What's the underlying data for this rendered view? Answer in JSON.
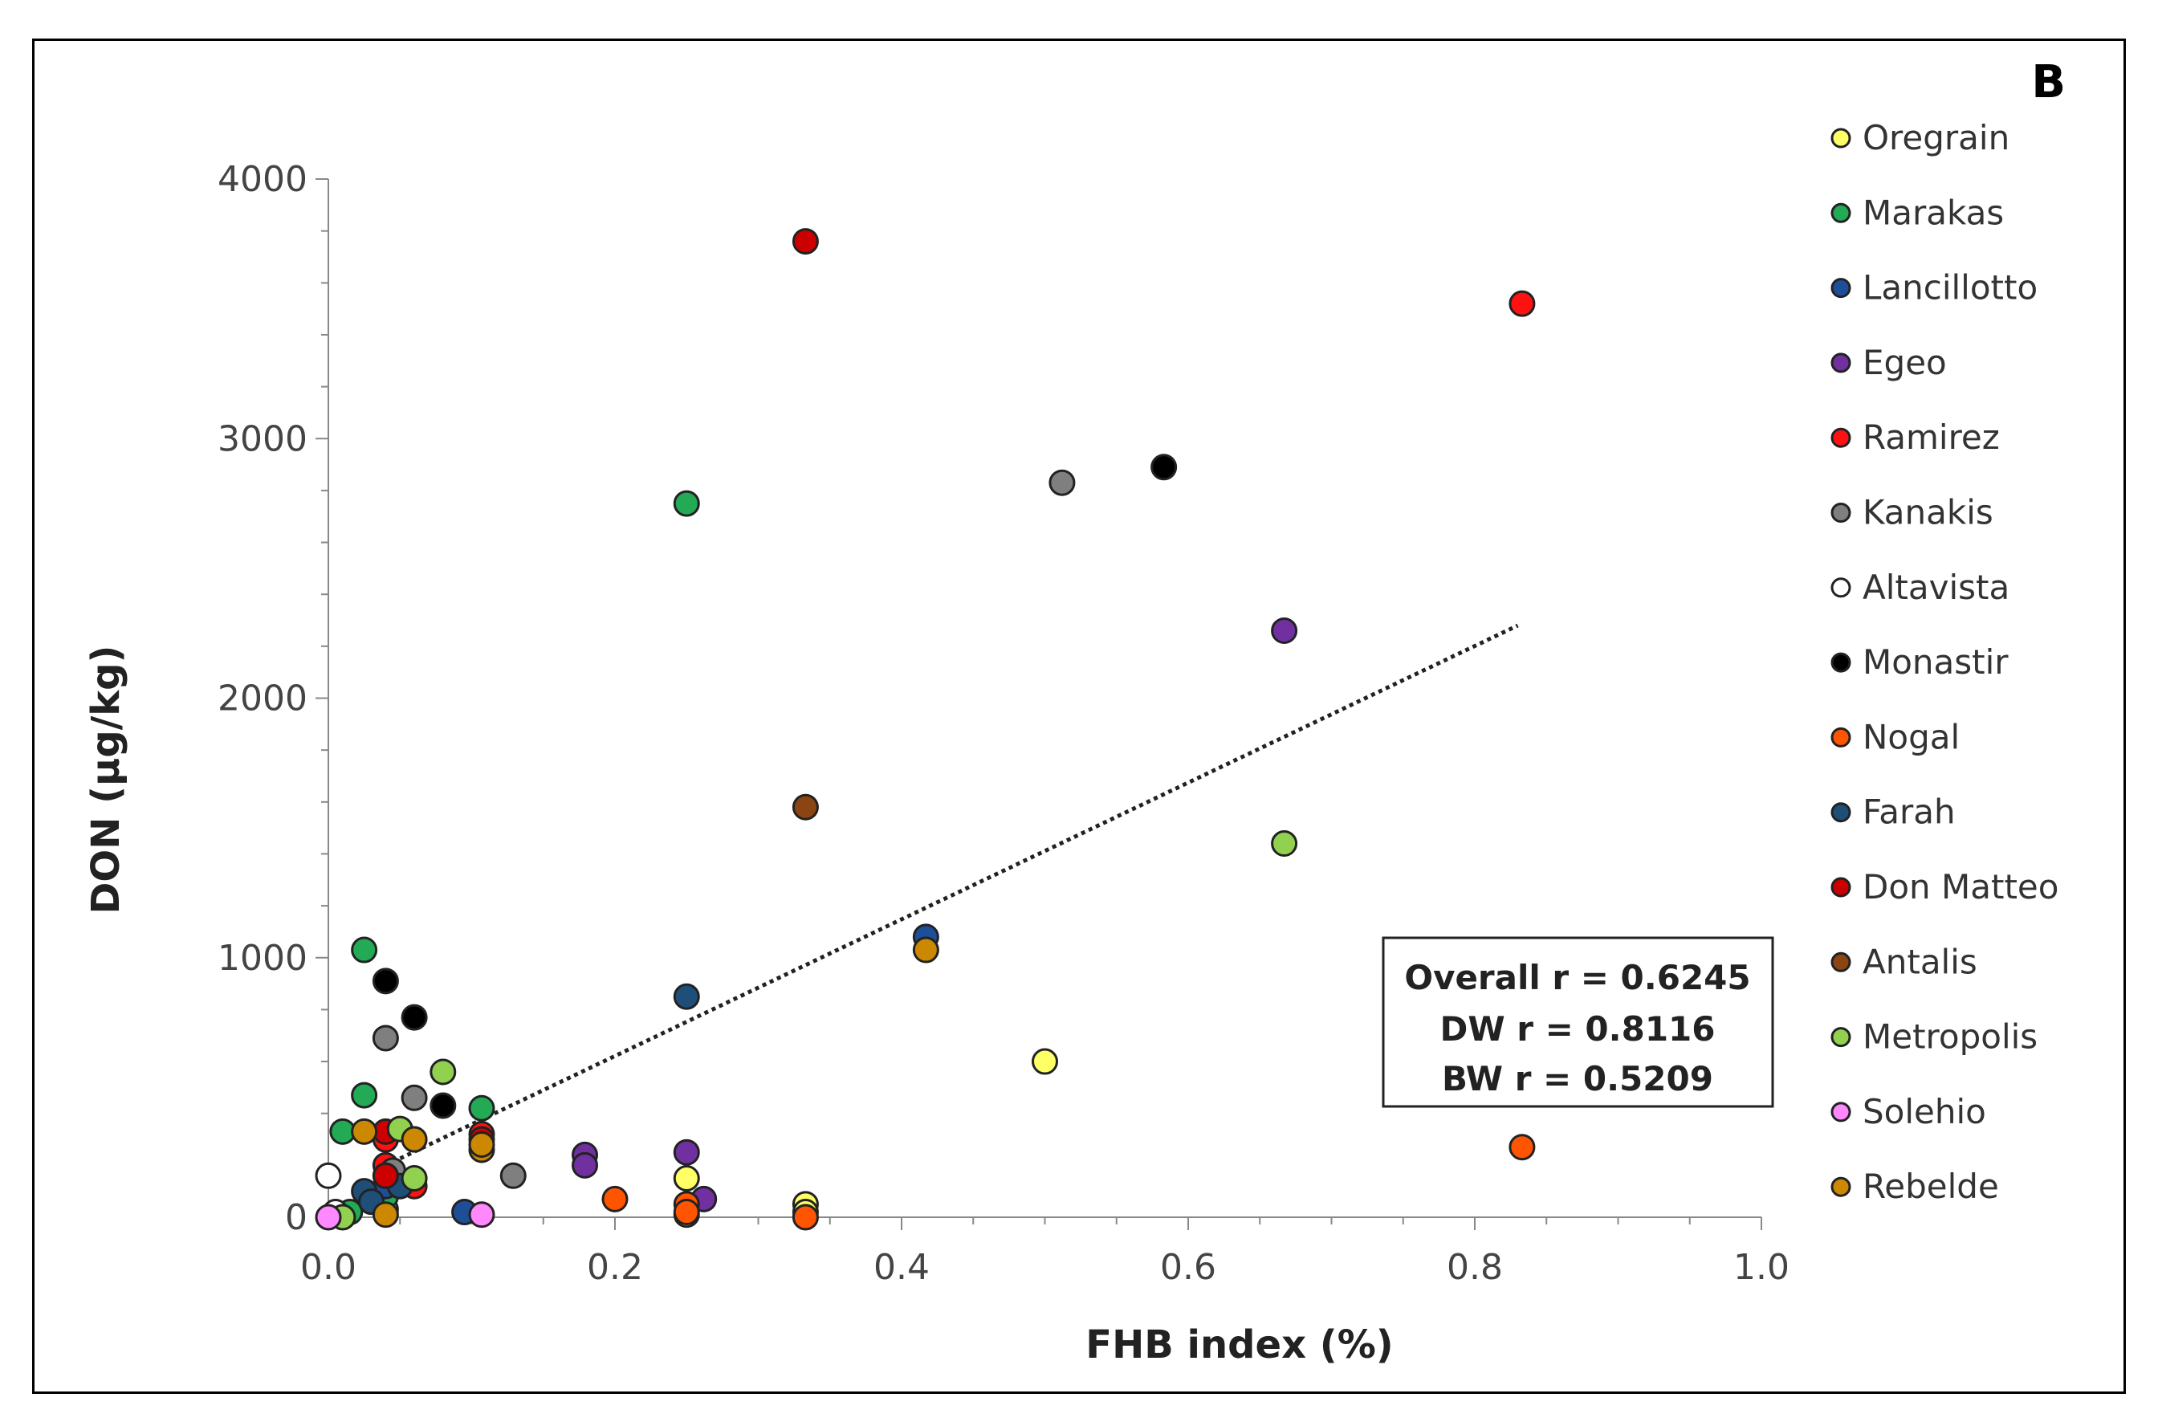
{
  "chart_data": {
    "type": "scatter",
    "panel_label": "B",
    "xlabel": "FHB index (%)",
    "ylabel": "DON (µg/kg)",
    "xlim": [
      0.0,
      1.0
    ],
    "ylim": [
      0,
      4000
    ],
    "x_ticks": [
      "0.0",
      "0.2",
      "0.4",
      "0.6",
      "0.8",
      "1.0"
    ],
    "y_ticks": [
      "0",
      "1000",
      "2000",
      "3000",
      "4000"
    ],
    "legend_position": "right",
    "trendline": {
      "style": "dotted",
      "x": [
        0.04,
        0.83
      ],
      "y": [
        200,
        2280
      ]
    },
    "annotations": [
      "Overall r = 0.6245",
      "DW r = 0.8116",
      "BW r = 0.5209"
    ],
    "series": [
      {
        "name": "Oregrain",
        "color": "#ffff66",
        "x": [
          0.5,
          0.25,
          0.333,
          0.25,
          0.04,
          0.333
        ],
        "y": [
          600,
          150,
          50,
          10,
          30,
          20
        ]
      },
      {
        "name": "Marakas",
        "color": "#22aa55",
        "x": [
          0.25,
          0.025,
          0.025,
          0.01,
          0.107,
          0.04,
          0.015
        ],
        "y": [
          2750,
          1030,
          470,
          330,
          420,
          80,
          20
        ]
      },
      {
        "name": "Lancillotto",
        "color": "#1f4e99",
        "x": [
          0.417,
          0.04,
          0.095,
          0.03
        ],
        "y": [
          1080,
          120,
          20,
          60
        ]
      },
      {
        "name": "Egeo",
        "color": "#7030a0",
        "x": [
          0.667,
          0.179,
          0.25,
          0.179,
          0.262
        ],
        "y": [
          2260,
          240,
          250,
          200,
          70
        ]
      },
      {
        "name": "Ramirez",
        "color": "#ff1111",
        "x": [
          0.833,
          0.107,
          0.04,
          0.04,
          0.06
        ],
        "y": [
          3520,
          320,
          300,
          200,
          120
        ]
      },
      {
        "name": "Kanakis",
        "color": "#7f7f7f",
        "x": [
          0.512,
          0.04,
          0.06,
          0.129,
          0.045
        ],
        "y": [
          2830,
          690,
          460,
          160,
          180
        ]
      },
      {
        "name": "Altavista",
        "color": "#ffffff",
        "x": [
          0.0,
          0.005
        ],
        "y": [
          160,
          20
        ]
      },
      {
        "name": "Monastir",
        "color": "#000000",
        "x": [
          0.583,
          0.04,
          0.06,
          0.08,
          0.04
        ],
        "y": [
          2890,
          910,
          770,
          430,
          160
        ]
      },
      {
        "name": "Nogal",
        "color": "#ff5500",
        "x": [
          0.833,
          0.2,
          0.25,
          0.333,
          0.25
        ],
        "y": [
          270,
          70,
          50,
          0,
          20
        ]
      },
      {
        "name": "Farah",
        "color": "#1f4e79",
        "x": [
          0.25,
          0.025,
          0.03,
          0.05
        ],
        "y": [
          850,
          100,
          60,
          120
        ]
      },
      {
        "name": "Don Matteo",
        "color": "#cc0000",
        "x": [
          0.333,
          0.04,
          0.04,
          0.107
        ],
        "y": [
          3760,
          160,
          330,
          300
        ]
      },
      {
        "name": "Antalis",
        "color": "#8b4513",
        "x": [
          0.333
        ],
        "y": [
          1580
        ]
      },
      {
        "name": "Metropolis",
        "color": "#92d050",
        "x": [
          0.667,
          0.08,
          0.05,
          0.06,
          0.01
        ],
        "y": [
          1440,
          560,
          340,
          150,
          0
        ]
      },
      {
        "name": "Solehio",
        "color": "#ff88ff",
        "x": [
          0.0,
          0.107
        ],
        "y": [
          0,
          10
        ]
      },
      {
        "name": "Rebelde",
        "color": "#cc8800",
        "x": [
          0.417,
          0.107,
          0.025,
          0.06,
          0.04,
          0.107
        ],
        "y": [
          1030,
          260,
          330,
          300,
          10,
          280
        ]
      }
    ]
  }
}
